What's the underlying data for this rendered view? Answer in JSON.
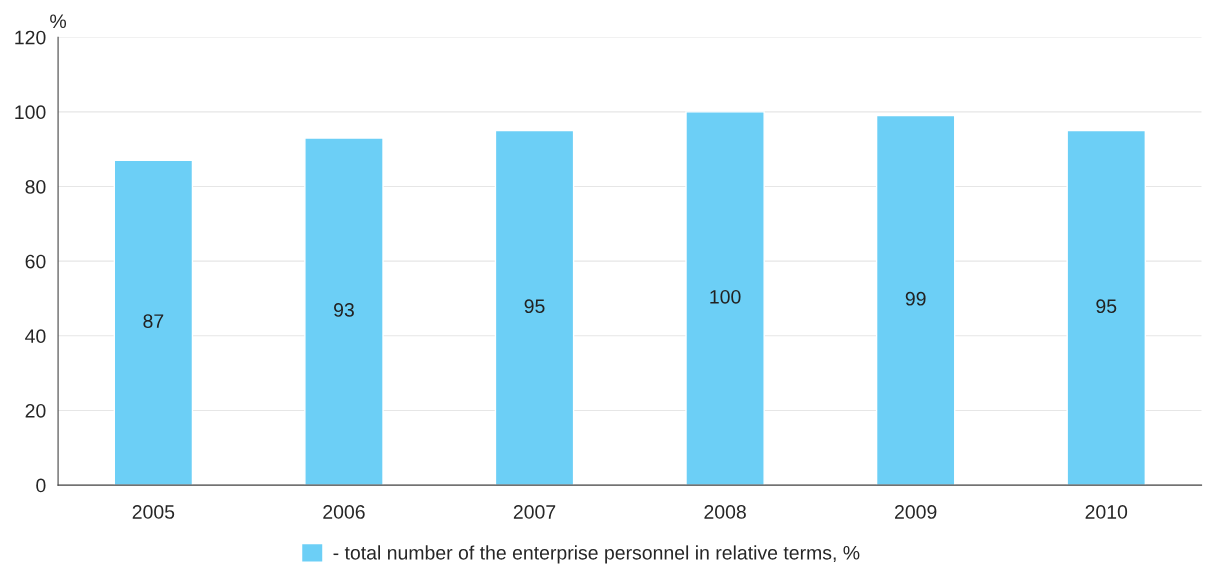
{
  "chart_data": {
    "type": "bar",
    "ylabel": "%",
    "categories": [
      "2005",
      "2006",
      "2007",
      "2008",
      "2009",
      "2010"
    ],
    "series": [
      {
        "name": "- total number of the enterprise personnel in relative terms, %",
        "color": "#6ccff6",
        "values": [
          87,
          93,
          95,
          100,
          99,
          95
        ]
      }
    ],
    "ylim": [
      0,
      120
    ],
    "yticks": [
      0,
      20,
      40,
      60,
      80,
      100,
      120
    ],
    "grid": "y",
    "legend": "bottom",
    "data_labels": true
  }
}
